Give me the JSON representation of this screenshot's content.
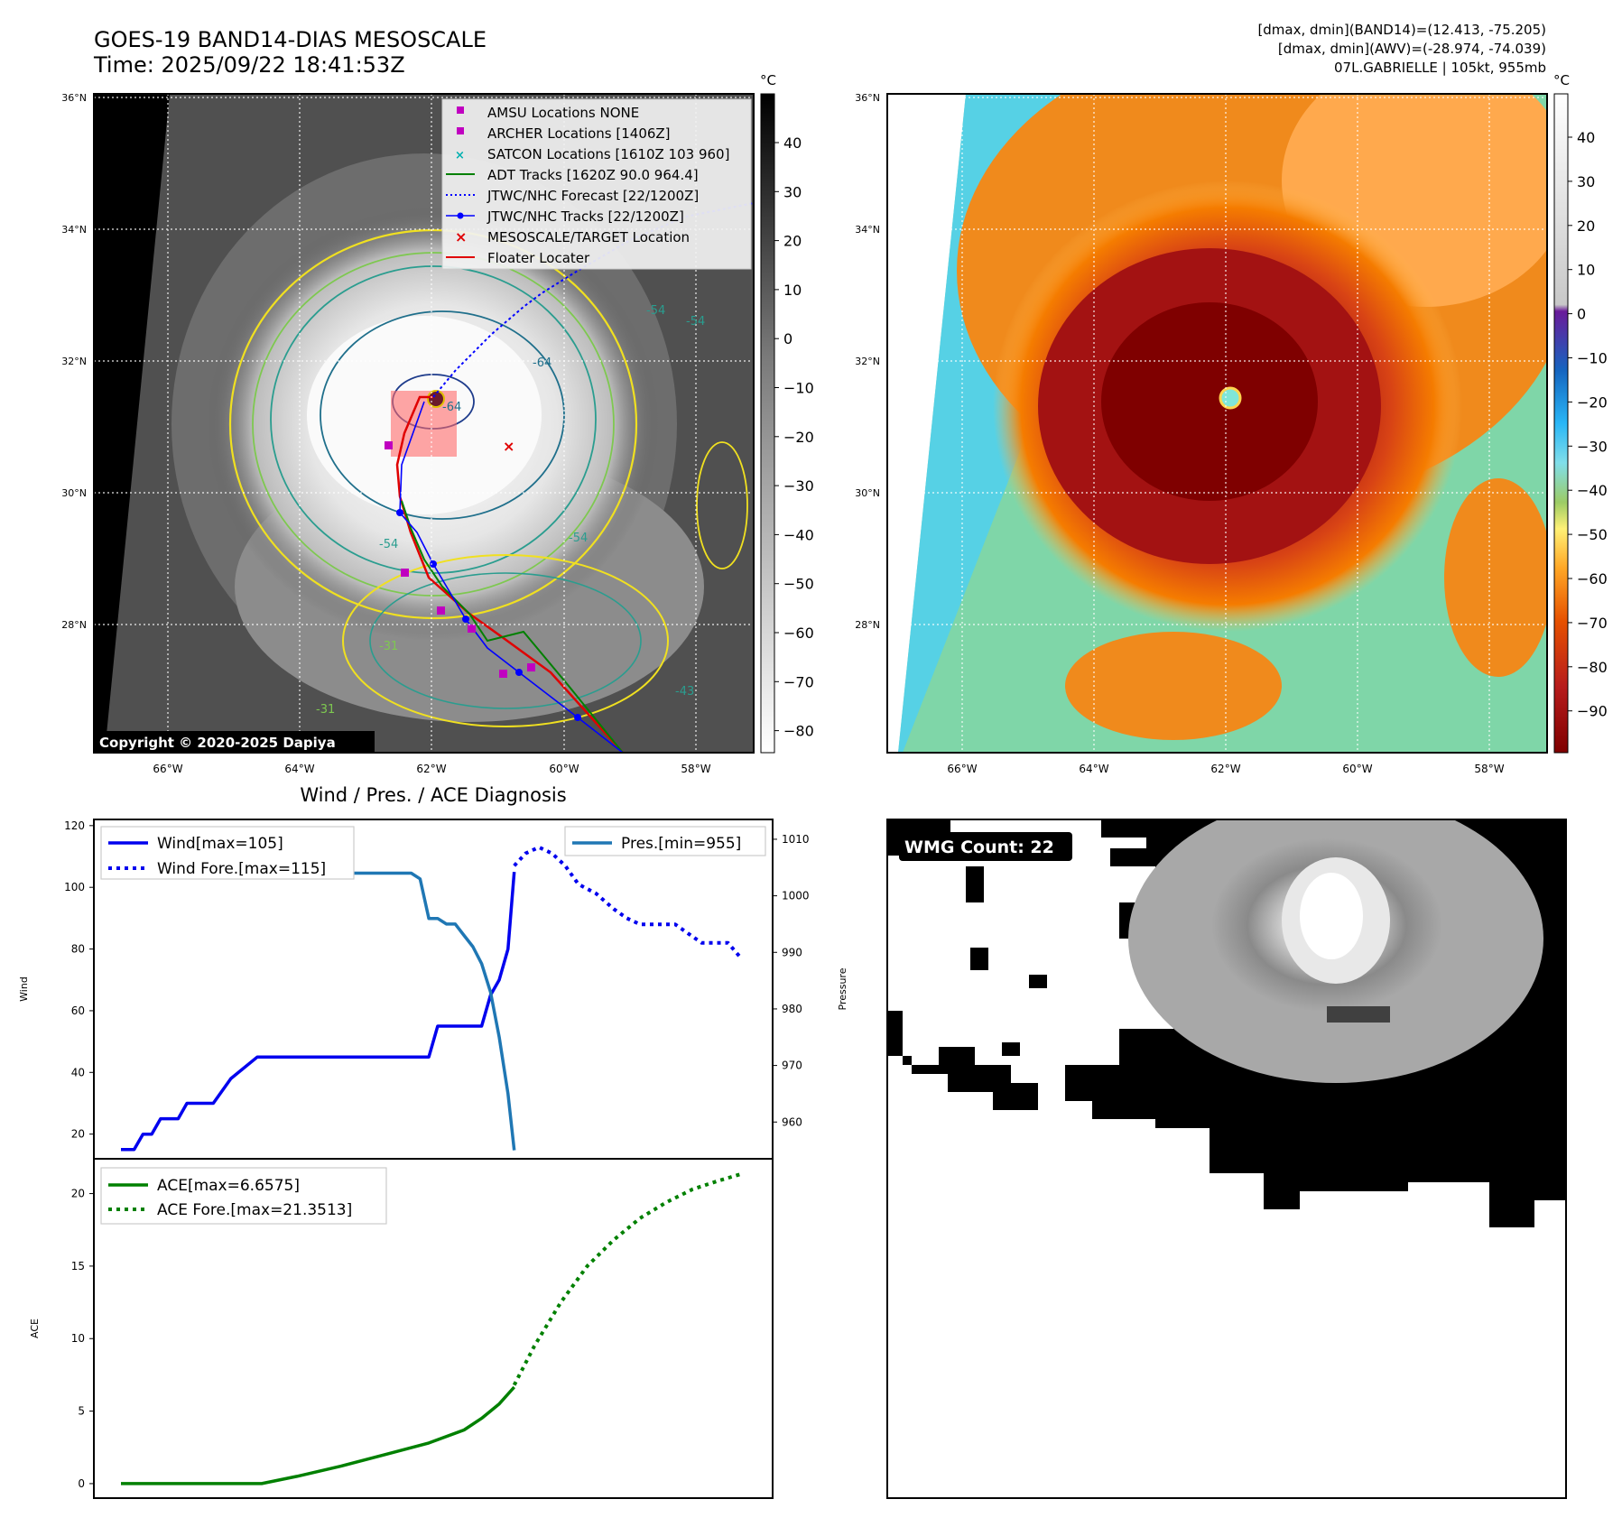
{
  "header": {
    "title_line1": "GOES-19 BAND14-DIAS MESOSCALE",
    "title_line2": "Time: 2025/09/22 18:41:53Z",
    "info_line1": "[dmax, dmin](BAND14)=(12.413, -75.205)",
    "info_line2": "[dmax, dmin](AWV)=(-28.974, -74.039)",
    "info_line3": "07L.GABRIELLE | 105kt, 955mb"
  },
  "map_common": {
    "lat_ticks": [
      "36°N",
      "34°N",
      "32°N",
      "30°N",
      "28°N"
    ],
    "lon_ticks": [
      "66°W",
      "64°W",
      "62°W",
      "60°W",
      "58°W"
    ],
    "colorbar_unit": "°C"
  },
  "ir_panel": {
    "colorbar_ticks": [
      "40",
      "30",
      "20",
      "10",
      "0",
      "−10",
      "−20",
      "−30",
      "−40",
      "−50",
      "−60",
      "−70",
      "−80"
    ],
    "copyright": "Copyright © 2020-2025 Dapiya",
    "contour_labels": [
      "-54",
      "-64",
      "-64",
      "-54",
      "-54",
      "-54",
      "-31",
      "-43",
      "-31"
    ],
    "legend": [
      {
        "label": "AMSU Locations NONE",
        "color": "#c000c0",
        "marker": "square"
      },
      {
        "label": "ARCHER Locations [1406Z]",
        "color": "#c000c0",
        "marker": "square"
      },
      {
        "label": "SATCON Locations [1610Z 103 960]",
        "color": "#00b0b0",
        "marker": "x"
      },
      {
        "label": "ADT Tracks [1620Z 90.0 964.4]",
        "color": "#008000",
        "marker": "line"
      },
      {
        "label": "JTWC/NHC Forecast [22/1200Z]",
        "color": "#0000ff",
        "marker": "dotted"
      },
      {
        "label": "JTWC/NHC Tracks [22/1200Z]",
        "color": "#0000ff",
        "marker": "line-dot"
      },
      {
        "label": "MESOSCALE/TARGET Location",
        "color": "#e00000",
        "marker": "x"
      },
      {
        "label": "Floater Locater",
        "color": "#e00000",
        "marker": "line"
      }
    ]
  },
  "bd_panel": {
    "colorbar_ticks": [
      "40",
      "30",
      "20",
      "10",
      "0",
      "−10",
      "−20",
      "−30",
      "−40",
      "−50",
      "−60",
      "−70",
      "−80",
      "−90"
    ]
  },
  "wmg_panel": {
    "badge": "WMG Count: 22"
  },
  "chart_data": [
    {
      "type": "line",
      "title": "Wind / Pres. / ACE Diagnosis",
      "ylabel": "Wind",
      "y2label": "Pressure",
      "ylim": [
        12,
        122
      ],
      "y2lim": [
        953.5,
        1013.5
      ],
      "yticks": [
        20,
        40,
        60,
        80,
        100,
        120
      ],
      "y2ticks": [
        960,
        970,
        980,
        990,
        1000,
        1010
      ],
      "x_index_range": [
        0,
        71
      ],
      "series": [
        {
          "name": "Wind[max=105]",
          "axis": "left",
          "style": "solid",
          "color": "#0000ee",
          "x": [
            0,
            1.5,
            2.5,
            3.5,
            4.5,
            5.5,
            6.5,
            7.5,
            8.5,
            9.5,
            10.5,
            12.5,
            15.5,
            18,
            25,
            33,
            35,
            36,
            40,
            41,
            42,
            43,
            44,
            44.7
          ],
          "values": [
            15,
            15,
            20,
            20,
            25,
            25,
            25,
            30,
            30,
            30,
            30,
            38,
            45,
            45,
            45,
            45,
            45,
            55,
            55,
            55,
            65,
            70,
            80,
            105
          ]
        },
        {
          "name": "Wind Fore.[max=115]",
          "axis": "left",
          "style": "dotted",
          "color": "#0000ee",
          "x": [
            44.7,
            46,
            47.5,
            49,
            50.5,
            52,
            54,
            56,
            57.5,
            59,
            61,
            63,
            64.5,
            66,
            67.5,
            69,
            70.5
          ],
          "values": [
            107,
            111,
            113,
            111,
            107,
            101,
            98,
            93,
            90,
            88,
            88,
            88,
            85,
            82,
            82,
            82,
            77
          ]
        },
        {
          "name": "Pres.[min=955]",
          "axis": "right",
          "style": "solid",
          "color": "#1f77b4",
          "x": [
            0,
            1.5,
            4,
            8,
            13,
            18,
            25,
            33,
            34,
            35,
            36,
            37,
            38,
            39,
            40,
            41,
            42,
            43,
            44,
            44.7
          ],
          "values": [
            1012,
            1012,
            1010,
            1008,
            1006,
            1004,
            1004,
            1004,
            1003,
            996,
            996,
            995,
            995,
            993,
            991,
            988,
            983,
            975,
            965,
            955
          ]
        }
      ]
    },
    {
      "type": "line",
      "ylabel": "ACE",
      "ylim": [
        -1,
        22.4
      ],
      "yticks": [
        0,
        5,
        10,
        15,
        20
      ],
      "x_index_range": [
        0,
        71
      ],
      "series": [
        {
          "name": "ACE[max=6.6575]",
          "style": "solid",
          "color": "#008000",
          "x": [
            0,
            4,
            8,
            12,
            16,
            20,
            25,
            30,
            35,
            39,
            41,
            43,
            44.7
          ],
          "values": [
            0,
            0,
            0,
            0,
            0,
            0.5,
            1.2,
            2.0,
            2.8,
            3.7,
            4.5,
            5.5,
            6.6575
          ]
        },
        {
          "name": "ACE Fore.[max=21.3513]",
          "style": "dotted",
          "color": "#008000",
          "x": [
            44.7,
            47,
            50,
            53,
            56,
            59,
            62,
            65,
            68,
            70.5
          ],
          "values": [
            6.8,
            9.5,
            12.5,
            15.0,
            16.8,
            18.3,
            19.4,
            20.3,
            20.9,
            21.3513
          ]
        }
      ]
    }
  ]
}
